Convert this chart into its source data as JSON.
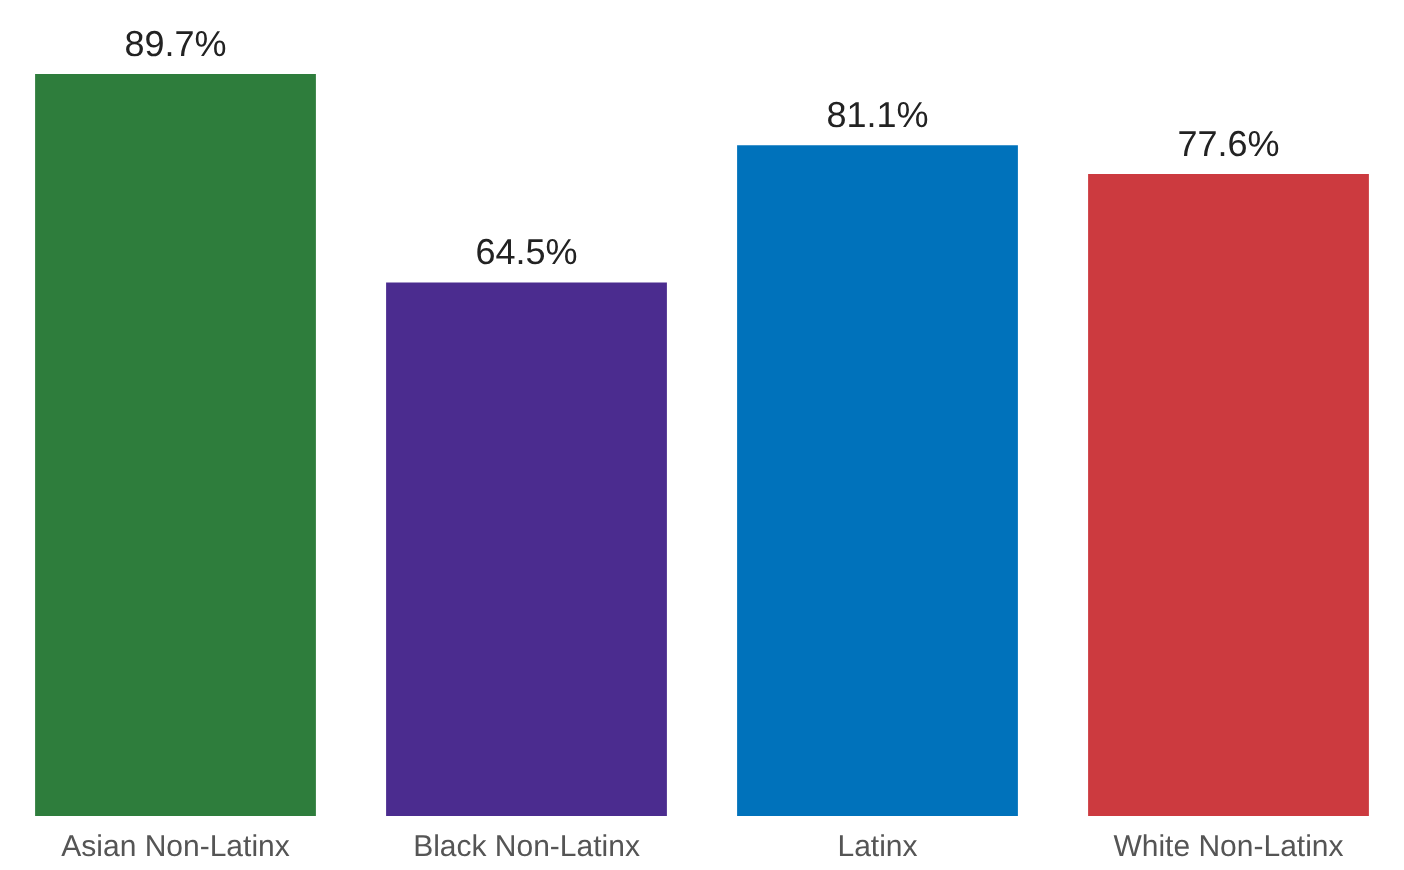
{
  "chart_data": {
    "type": "bar",
    "categories": [
      "Asian Non-Latinx",
      "Black Non-Latinx",
      "Latinx",
      "White Non-Latinx"
    ],
    "values": [
      89.7,
      64.5,
      81.1,
      77.6
    ],
    "colors": [
      "#2e7d3c",
      "#4b2c8f",
      "#0072bb",
      "#cc3a3f"
    ],
    "value_labels": [
      "89.7%",
      "64.5%",
      "81.1%",
      "77.6%"
    ]
  }
}
